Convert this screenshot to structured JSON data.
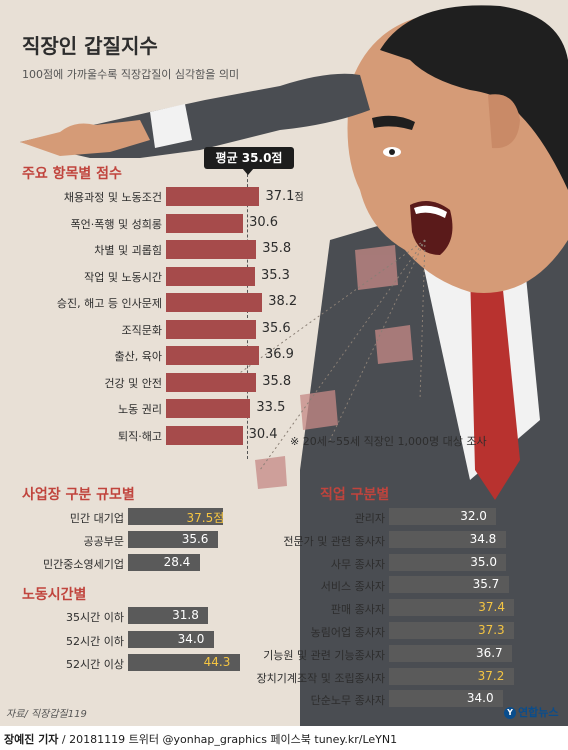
{
  "title": "직장인 갑질지수",
  "subtitle": "100점에 가까울수록 직장갑질이 심각함을 의미",
  "average_label": "평균 35.0점",
  "note": "※ 20세~55세 직장인 1,000명 대상 조사",
  "source": "자료/ 직장갑질119",
  "logo": "연합뉴스",
  "credit": {
    "author": "장예진 기자",
    "rest": " / 20181119 트위터 @yonhap_graphics  페이스북 tuney.kr/LeYN1"
  },
  "colors": {
    "bar_main": "#a64b4b",
    "bar_secondary": "#5a5a5a",
    "highlight_value": "#f5c542",
    "section_heading": "#c0443d",
    "background": "#e8e0d6"
  },
  "chart_data": [
    {
      "type": "bar",
      "orientation": "horizontal",
      "title": "주요 항목별 점수",
      "categories": [
        "채용과정 및 노동조건",
        "폭언·폭행 및 성희롱",
        "차별 및 괴롭힘",
        "작업 및 노동시간",
        "승진, 해고 등 인사문제",
        "조직문화",
        "출산, 육아",
        "건강 및 안전",
        "노동 권리",
        "퇴직·해고"
      ],
      "values": [
        37.1,
        30.6,
        35.8,
        35.3,
        38.2,
        35.6,
        36.9,
        35.8,
        33.5,
        30.4
      ],
      "value_labels": [
        "37.1",
        "30.6",
        "35.8",
        "35.3",
        "38.2",
        "35.6",
        "36.9",
        "35.8",
        "33.5",
        "30.4"
      ],
      "unit": "점",
      "average": 35.0
    },
    {
      "type": "bar",
      "orientation": "horizontal",
      "title": "사업장 구분 규모별",
      "categories": [
        "민간 대기업",
        "공공부문",
        "민간중소영세기업"
      ],
      "values": [
        37.5,
        35.6,
        28.4
      ],
      "value_labels": [
        "37.5점",
        "35.6",
        "28.4"
      ],
      "highlight_index": 0
    },
    {
      "type": "bar",
      "orientation": "horizontal",
      "title": "노동시간별",
      "categories": [
        "35시간 이하",
        "52시간 이하",
        "52시간 이상"
      ],
      "values": [
        31.8,
        34.0,
        44.3
      ],
      "value_labels": [
        "31.8",
        "34.0",
        "44.3"
      ],
      "highlight_index": 2
    },
    {
      "type": "bar",
      "orientation": "horizontal",
      "title": "직업 구분별",
      "categories": [
        "관리자",
        "전문가 및 관련 종사자",
        "사무 종사자",
        "서비스 종사자",
        "판매 종사자",
        "농림어업 종사자",
        "기능원 및 관련 기능종사자",
        "장치기계조작 및 조립종사자",
        "단순노무 종사자"
      ],
      "values": [
        32.0,
        34.8,
        35.0,
        35.7,
        37.4,
        37.3,
        36.7,
        37.2,
        34.0
      ],
      "value_labels": [
        "32.0",
        "34.8",
        "35.0",
        "35.7",
        "37.4",
        "37.3",
        "36.7",
        "37.2",
        "34.0"
      ],
      "highlight_indices": [
        4,
        5,
        7
      ]
    }
  ]
}
